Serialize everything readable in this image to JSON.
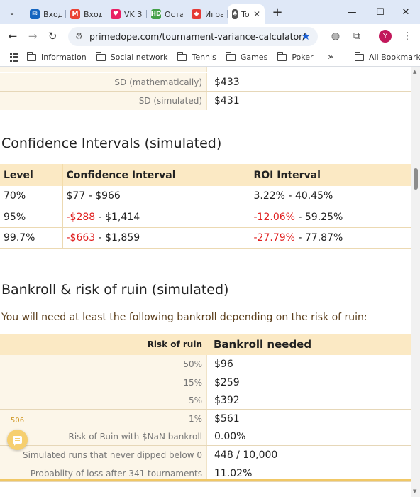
{
  "browser": {
    "tabs": [
      {
        "title": "Входя",
        "favicon_color": "#1565c0",
        "favicon_text": "✉"
      },
      {
        "title": "Входя",
        "favicon_color": "#ea4335",
        "favicon_text": "M"
      },
      {
        "title": "VK Зн",
        "favicon_color": "#e91e63",
        "favicon_text": "♥"
      },
      {
        "title": "Остат",
        "favicon_color": "#43a047",
        "favicon_text": "HD"
      },
      {
        "title": "Игра",
        "favicon_color": "#e53935",
        "favicon_text": "◆"
      },
      {
        "title": "To",
        "favicon_color": "#555555",
        "favicon_text": "♠",
        "active": true
      }
    ],
    "url": "primedope.com/tournament-variance-calculator/",
    "profile_initial": "Y",
    "bookmarks": [
      "Information",
      "Social network",
      "Tennis",
      "Games",
      "Poker"
    ],
    "more_label": "»",
    "all_bookmarks_label": "All Bookmarks"
  },
  "stats": [
    {
      "label": "SD (mathematically)",
      "value": "$433"
    },
    {
      "label": "SD (simulated)",
      "value": "$431"
    }
  ],
  "confidence": {
    "title": "Confidence Intervals (simulated)",
    "headers": [
      "Level",
      "Confidence Interval",
      "ROI Interval"
    ],
    "rows": [
      {
        "level": "70%",
        "ci_low": "$77",
        "ci_low_neg": false,
        "ci_high": "$966",
        "roi_low": "3.22%",
        "roi_low_neg": false,
        "roi_high": "40.45%"
      },
      {
        "level": "95%",
        "ci_low": "-$288",
        "ci_low_neg": true,
        "ci_high": "$1,414",
        "roi_low": "-12.06%",
        "roi_low_neg": true,
        "roi_high": "59.25%"
      },
      {
        "level": "99.7%",
        "ci_low": "-$663",
        "ci_low_neg": true,
        "ci_high": "$1,859",
        "roi_low": "-27.79%",
        "roi_low_neg": true,
        "roi_high": "77.87%"
      }
    ]
  },
  "bankroll": {
    "title": "Bankroll & risk of ruin (simulated)",
    "intro": "You will need at least the following bankroll depending on the risk of ruin:",
    "header_label": "Risk of ruin",
    "header_value": "Bankroll needed",
    "rows": [
      {
        "label": "50%",
        "value": "$96"
      },
      {
        "label": "15%",
        "value": "$259"
      },
      {
        "label": "5%",
        "value": "$392"
      },
      {
        "label": "1%",
        "value": "$561"
      },
      {
        "label": "Risk of Ruin with $NaN bankroll",
        "value": "0.00%"
      },
      {
        "label": "Simulated runs that never dipped below 0",
        "value": "448 / 10,000"
      },
      {
        "label": "Probablity of loss after 341 tournaments",
        "value": "11.02%"
      }
    ]
  },
  "chat_widget": {
    "count": "506"
  },
  "colors": {
    "accent": "#fbe9c4",
    "negative": "#e02020",
    "border": "#f0c765"
  }
}
